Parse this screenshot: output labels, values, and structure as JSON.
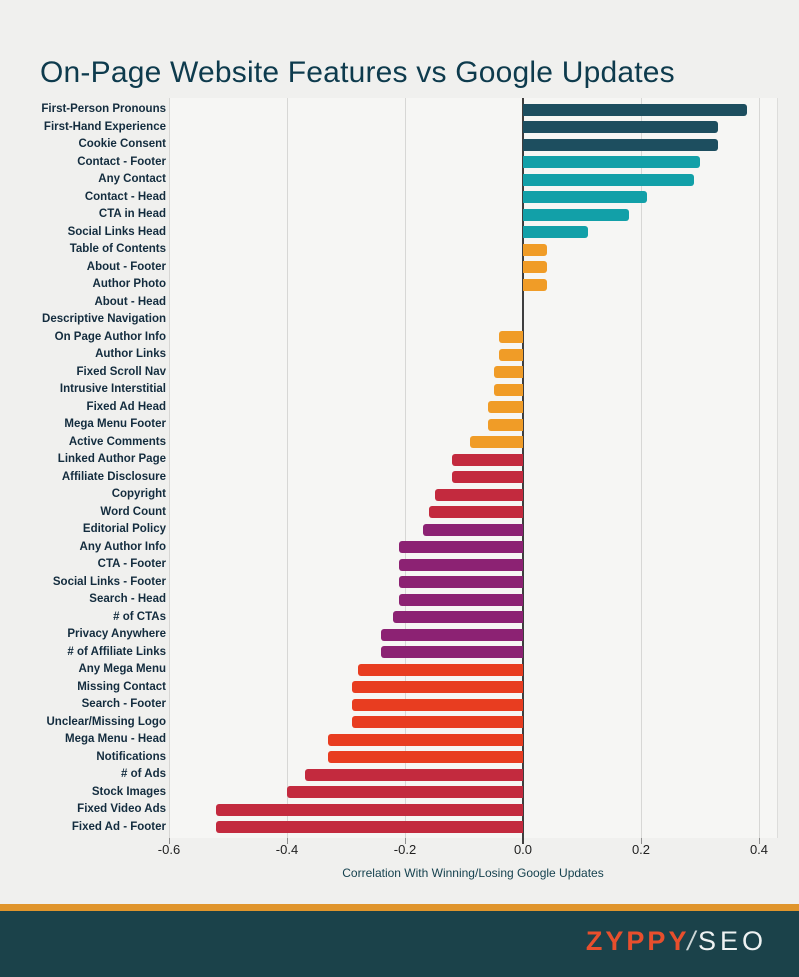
{
  "page": {
    "title": "On-Page Website Features vs Google Updates"
  },
  "chart_data": {
    "type": "bar",
    "orientation": "horizontal",
    "title": "On-Page Website Features vs Google Updates",
    "xlabel": "Correlation With Winning/Losing Google Updates",
    "ylabel": "",
    "xlim": [
      -0.6,
      0.43
    ],
    "x_ticks": [
      -0.6,
      -0.4,
      -0.2,
      0,
      0.2,
      0.4
    ],
    "x_tick_labels": [
      "-0.6",
      "-0.4",
      "-0.2",
      "0.0",
      "0.2",
      "0.4"
    ],
    "grid": true,
    "legend": false,
    "categories": [
      "First-Person Pronouns",
      "First-Hand Experience",
      "Cookie Consent",
      "Contact - Footer",
      "Any Contact",
      "Contact - Head",
      "CTA in Head",
      "Social Links Head",
      "Table of Contents",
      "About - Footer",
      "Author Photo",
      "About - Head",
      "Descriptive Navigation",
      "On Page Author Info",
      "Author Links",
      "Fixed Scroll Nav",
      "Intrusive Interstitial",
      "Fixed Ad Head",
      "Mega Menu Footer",
      "Active Comments",
      "Linked Author Page",
      "Affiliate Disclosure",
      "Copyright",
      "Word Count",
      "Editorial Policy",
      "Any Author Info",
      "CTA - Footer",
      "Social Links - Footer",
      "Search - Head",
      "# of CTAs",
      "Privacy Anywhere",
      "# of Affiliate Links",
      "Any Mega Menu",
      "Missing Contact",
      "Search - Footer",
      "Unclear/Missing Logo",
      "Mega Menu - Head",
      "Notifications",
      "# of Ads",
      "Stock Images",
      "Fixed Video Ads",
      "Fixed Ad - Footer"
    ],
    "values": [
      0.38,
      0.33,
      0.33,
      0.3,
      0.29,
      0.21,
      0.18,
      0.11,
      0.04,
      0.04,
      0.04,
      0,
      0,
      -0.04,
      -0.04,
      -0.05,
      -0.05,
      -0.06,
      -0.06,
      -0.09,
      -0.12,
      -0.12,
      -0.15,
      -0.16,
      -0.17,
      -0.21,
      -0.21,
      -0.21,
      -0.21,
      -0.22,
      -0.24,
      -0.24,
      -0.28,
      -0.29,
      -0.29,
      -0.29,
      -0.33,
      -0.33,
      -0.37,
      -0.4,
      -0.52,
      -0.52
    ],
    "bar_colors": [
      "#1d4e5f",
      "#1d4e5f",
      "#1d4e5f",
      "#12a0a8",
      "#12a0a8",
      "#12a0a8",
      "#12a0a8",
      "#12a0a8",
      "#f09c27",
      "#f09c27",
      "#f09c27",
      "#f09c27",
      "#f09c27",
      "#f09c27",
      "#f09c27",
      "#f09c27",
      "#f09c27",
      "#f09c27",
      "#f09c27",
      "#f09c27",
      "#c32a3e",
      "#c32a3e",
      "#c32a3e",
      "#c32a3e",
      "#8c2273",
      "#8c2273",
      "#8c2273",
      "#8c2273",
      "#8c2273",
      "#8c2273",
      "#8c2273",
      "#8c2273",
      "#e83d20",
      "#e83d20",
      "#e83d20",
      "#e83d20",
      "#e83d20",
      "#e83d20",
      "#c32a3e",
      "#c32a3e",
      "#c32a3e",
      "#c32a3e"
    ]
  },
  "theme": {
    "background": "#f0f0ee",
    "title_color": "#0e3b4d",
    "label_color": "#132c3e",
    "axis_line_color": "#3e3e3e",
    "gridline_color": "#d7d7d5",
    "stripe_color": "#e0952c",
    "footer_background": "#1b424a",
    "logo_red": "#e84f2d",
    "logo_white": "#eef2f2"
  },
  "footer": {
    "brand_primary": "ZYPPY",
    "brand_slash": "/",
    "brand_secondary": "SEO"
  }
}
